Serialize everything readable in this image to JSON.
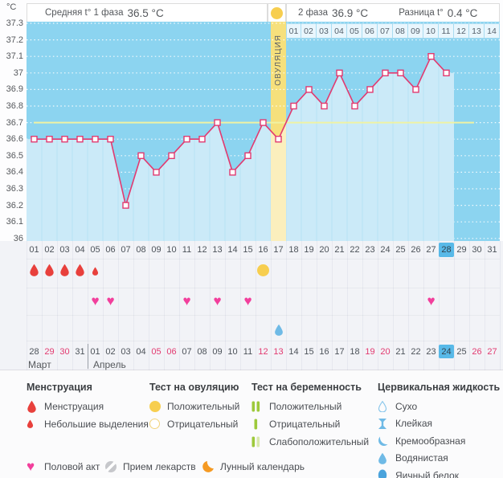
{
  "header": {
    "phase1_label": "Средняя t° 1 фаза",
    "phase1_value": "36.5 °C",
    "phase2_label": "2 фаза",
    "phase2_value": "36.9 °C",
    "diff_label": "Разница t°",
    "diff_value": "0.4 °C"
  },
  "chart_data": {
    "type": "line",
    "unit": "°C",
    "ylim": [
      36,
      37.3
    ],
    "yticks": [
      "37.3",
      "37.2",
      "37.1",
      "37",
      "36.9",
      "36.8",
      "36.7",
      "36.6",
      "36.5",
      "36.4",
      "36.3",
      "36.2",
      "36.1",
      "36"
    ],
    "cycle_days": [
      "01",
      "02",
      "03",
      "04",
      "05",
      "06",
      "07",
      "08",
      "09",
      "10",
      "11",
      "12",
      "13",
      "14",
      "15",
      "16",
      "17",
      "18",
      "19",
      "20",
      "21",
      "22",
      "23",
      "24",
      "25",
      "26",
      "27",
      "28",
      "29",
      "30",
      "31"
    ],
    "temperatures": [
      36.6,
      36.6,
      36.6,
      36.6,
      36.6,
      36.6,
      36.2,
      36.5,
      36.4,
      36.5,
      36.6,
      36.6,
      36.7,
      36.4,
      36.5,
      36.7,
      36.6,
      36.8,
      36.9,
      36.8,
      37.0,
      36.8,
      36.9,
      37.0,
      37.0,
      36.9,
      37.1,
      37.0,
      null,
      null,
      null
    ],
    "coverline": 36.7,
    "ovulation_day": 17,
    "ovulation_label": "ОВУЛЯЦИЯ",
    "dpo_labels": [
      "01",
      "02",
      "03",
      "04",
      "05",
      "06",
      "07",
      "08",
      "09",
      "10",
      "11",
      "12",
      "13",
      "14"
    ],
    "dpo_start_day": 18,
    "today_cycle_day": 28,
    "grid": "dotted-white-horizontal",
    "legend_position": "bottom"
  },
  "markers": {
    "menstruation_days": [
      1,
      2,
      3,
      4
    ],
    "spotting_days": [
      5
    ],
    "ovulation_test_positive_days": [
      16
    ],
    "intercourse_days": [
      5,
      6,
      11,
      13,
      15,
      27
    ],
    "cervical_fluid_days": [
      {
        "day": 17,
        "type": "Водянистая"
      }
    ]
  },
  "calendar": {
    "months": [
      {
        "name": "Март",
        "dates": [
          28,
          29,
          30,
          31
        ],
        "weekend_dates": [
          29,
          30
        ],
        "today": null
      },
      {
        "name": "Апрель",
        "dates": [
          1,
          2,
          3,
          4,
          5,
          6,
          7,
          8,
          9,
          10,
          11,
          12,
          13,
          14,
          15,
          16,
          17,
          18,
          19,
          20,
          21,
          22,
          23,
          24,
          25,
          26,
          27
        ],
        "weekend_dates": [
          5,
          6,
          12,
          13,
          19,
          20,
          26,
          27
        ],
        "today": 24
      }
    ]
  },
  "legend": {
    "groups": [
      {
        "title": "Менструация",
        "items": [
          {
            "icon": "drop-red-large-icon",
            "label": "Менструация"
          },
          {
            "icon": "drop-red-small-icon",
            "label": "Небольшие выделения"
          }
        ]
      },
      {
        "title": "Тест на овуляцию",
        "items": [
          {
            "icon": "circle-yellow-filled-icon",
            "label": "Положительный"
          },
          {
            "icon": "circle-yellow-outline-icon",
            "label": "Отрицательный"
          }
        ]
      },
      {
        "title": "Тест на беременность",
        "items": [
          {
            "icon": "test-bars-two-green-icon",
            "label": "Положительный"
          },
          {
            "icon": "test-bar-one-green-icon",
            "label": "Отрицательный"
          },
          {
            "icon": "test-bars-weak-green-icon",
            "label": "Слабоположительный"
          }
        ]
      },
      {
        "title": "Цервикальная жидкость",
        "items": [
          {
            "icon": "drop-blue-outline-icon",
            "label": "Сухо"
          },
          {
            "icon": "ibeam-blue-icon",
            "label": "Клейкая"
          },
          {
            "icon": "crescent-blue-icon",
            "label": "Кремообразная"
          },
          {
            "icon": "drop-blue-filled-icon",
            "label": "Водянистая"
          },
          {
            "icon": "oval-blue-filled-icon",
            "label": "Яичный белок"
          }
        ]
      }
    ],
    "footer_items": [
      {
        "icon": "heart-pink-icon",
        "label": "Половой акт"
      },
      {
        "icon": "pill-gray-icon",
        "label": "Прием лекарств"
      },
      {
        "icon": "moon-orange-icon",
        "label": "Лунный календарь"
      }
    ]
  },
  "colors": {
    "plot_bg": "#8cd4f0",
    "area_fill": "#cbeaf8",
    "column_separator": "#b7e2f4",
    "ovulation_column": "#f6e07c",
    "ovulation_column_fill": "#fbefbd",
    "coverline": "#eff2a3",
    "temp_line": "#e23a70",
    "highlight_day": "#58b9e8",
    "menstruation_red": "#e8403c",
    "heart_pink": "#f23f9c",
    "test_yellow": "#f7ce4f",
    "cervical_blue": "#6fbae6",
    "pregnancy_green": "#9dc93b",
    "moon_orange": "#f59a23"
  }
}
